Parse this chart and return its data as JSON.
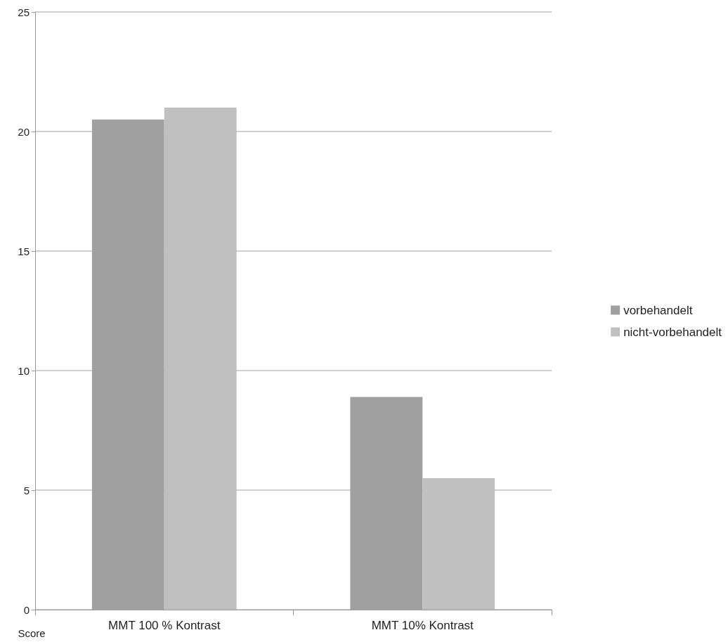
{
  "chart_data": {
    "type": "bar",
    "ylabel": "Score",
    "categories": [
      "MMT 100 % Kontrast",
      "MMT 10% Kontrast"
    ],
    "series": [
      {
        "name": "vorbehandelt",
        "color": "#a0a0a0",
        "values": [
          20.5,
          8.9
        ]
      },
      {
        "name": "nicht-vorbehandelt",
        "color": "#c0c0c0",
        "values": [
          21.0,
          5.5
        ]
      }
    ],
    "ylim": [
      0,
      25
    ],
    "yticks": [
      0,
      5,
      10,
      15,
      20,
      25
    ],
    "grid": "y",
    "legend": "right"
  }
}
